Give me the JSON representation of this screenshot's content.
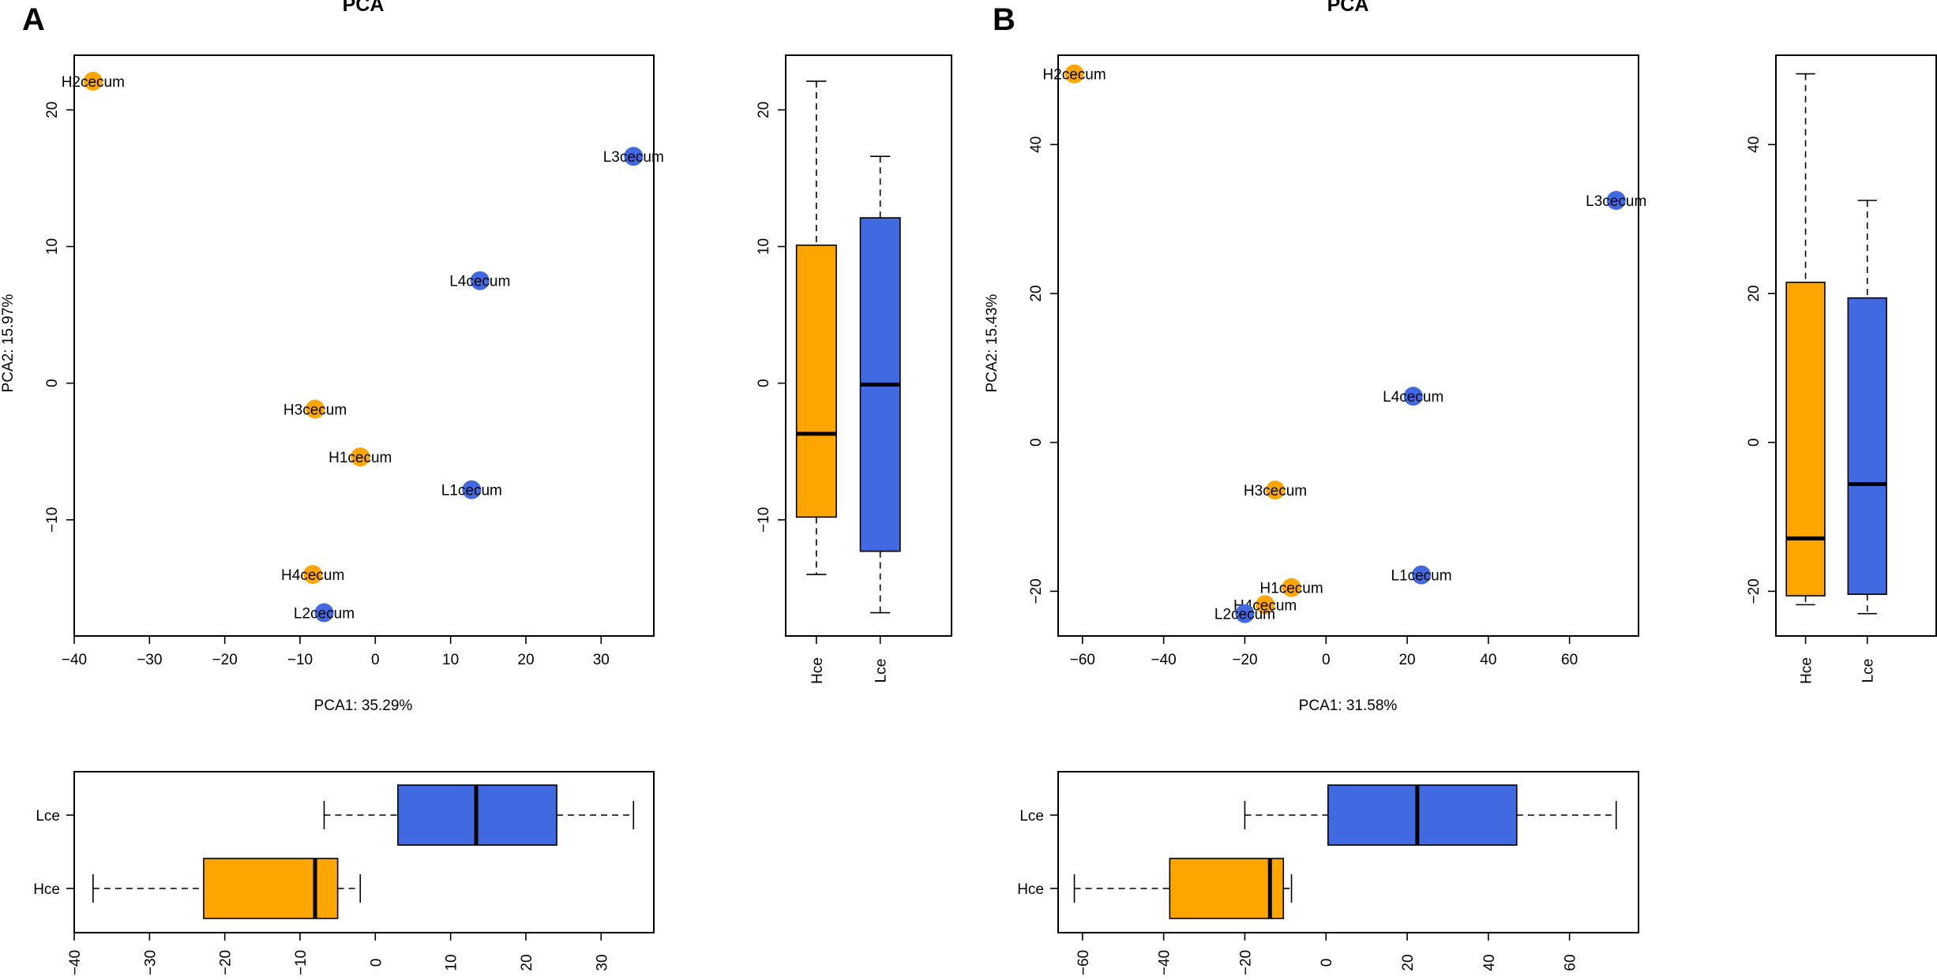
{
  "colors": {
    "H": "#FFA500",
    "L": "#4169E1",
    "axis": "#000000"
  },
  "chart_data": [
    {
      "panel": "A",
      "type": "scatter",
      "title": "PCA",
      "xlabel": "PCA1: 35.29%",
      "ylabel": "PCA2: 15.97%",
      "xlim": [
        -40,
        37
      ],
      "ylim": [
        -18.5,
        24
      ],
      "xticks": [
        -40,
        -30,
        -20,
        -10,
        0,
        10,
        20,
        30
      ],
      "yticks": [
        -10,
        0,
        10,
        20
      ],
      "points": [
        {
          "label": "H2cecum",
          "group": "H",
          "x": -37.5,
          "y": 22.1
        },
        {
          "label": "L3cecum",
          "group": "L",
          "x": 34.3,
          "y": 16.6
        },
        {
          "label": "L4cecum",
          "group": "L",
          "x": 13.9,
          "y": 7.5
        },
        {
          "label": "H3cecum",
          "group": "H",
          "x": -8.0,
          "y": -1.9
        },
        {
          "label": "H1cecum",
          "group": "H",
          "x": -2.0,
          "y": -5.4
        },
        {
          "label": "L1cecum",
          "group": "L",
          "x": 12.8,
          "y": -7.8
        },
        {
          "label": "H4cecum",
          "group": "H",
          "x": -8.3,
          "y": -14.0
        },
        {
          "label": "L2cecum",
          "group": "L",
          "x": -6.8,
          "y": -16.8
        }
      ],
      "boxplot_y": {
        "categories": [
          "Hce",
          "Lce"
        ],
        "boxes": [
          {
            "group": "H",
            "min": -14.0,
            "q1": -9.8,
            "median": -3.7,
            "q3": 10.1,
            "max": 22.1
          },
          {
            "group": "L",
            "min": -16.8,
            "q1": -12.3,
            "median": -0.1,
            "q3": 12.1,
            "max": 16.6
          }
        ]
      },
      "boxplot_x": {
        "categories": [
          "Hce",
          "Lce"
        ],
        "boxes": [
          {
            "group": "H",
            "min": -37.5,
            "q1": -22.8,
            "median": -8.0,
            "q3": -5.0,
            "max": -2.0
          },
          {
            "group": "L",
            "min": -6.8,
            "q1": 3.0,
            "median": 13.4,
            "q3": 24.1,
            "max": 34.3
          }
        ]
      }
    },
    {
      "panel": "B",
      "type": "scatter",
      "title": "PCA",
      "xlabel": "PCA1: 31.58%",
      "ylabel": "PCA2: 15.43%",
      "xlim": [
        -66,
        77
      ],
      "ylim": [
        -26,
        52
      ],
      "xticks": [
        -60,
        -40,
        -20,
        0,
        20,
        40,
        60
      ],
      "yticks": [
        -20,
        0,
        20,
        40
      ],
      "points": [
        {
          "label": "H2cecum",
          "group": "H",
          "x": -62.0,
          "y": 49.5
        },
        {
          "label": "L3cecum",
          "group": "L",
          "x": 71.5,
          "y": 32.5
        },
        {
          "label": "L4cecum",
          "group": "L",
          "x": 21.5,
          "y": 6.2
        },
        {
          "label": "H3cecum",
          "group": "H",
          "x": -12.5,
          "y": -6.4
        },
        {
          "label": "L1cecum",
          "group": "L",
          "x": 23.5,
          "y": -17.8
        },
        {
          "label": "H1cecum",
          "group": "H",
          "x": -8.5,
          "y": -19.5
        },
        {
          "label": "H4cecum",
          "group": "H",
          "x": -15.0,
          "y": -21.8
        },
        {
          "label": "L2cecum",
          "group": "L",
          "x": -20.0,
          "y": -23.0
        }
      ],
      "boxplot_y": {
        "categories": [
          "Hce",
          "Lce"
        ],
        "boxes": [
          {
            "group": "H",
            "min": -21.8,
            "q1": -20.6,
            "median": -12.9,
            "q3": 21.5,
            "max": 49.5
          },
          {
            "group": "L",
            "min": -23.0,
            "q1": -20.4,
            "median": -5.6,
            "q3": 19.4,
            "max": 32.5
          }
        ]
      },
      "boxplot_x": {
        "categories": [
          "Hce",
          "Lce"
        ],
        "boxes": [
          {
            "group": "H",
            "min": -62.0,
            "q1": -38.5,
            "median": -13.8,
            "q3": -10.5,
            "max": -8.5
          },
          {
            "group": "L",
            "min": -20.0,
            "q1": 0.5,
            "median": 22.5,
            "q3": 47.0,
            "max": 71.5
          }
        ]
      }
    }
  ]
}
